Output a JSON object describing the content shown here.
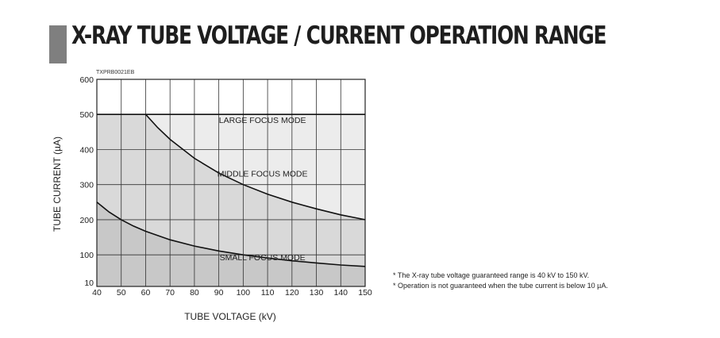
{
  "page_title": "X-RAY TUBE VOLTAGE / CURRENT OPERATION RANGE",
  "figure_code": "TXPRB0021EB",
  "notes": [
    "* The X-ray tube voltage guaranteed range is 40 kV to 150 kV.",
    "* Operation is not guaranteed when the tube current is below 10 µA."
  ],
  "colors": {
    "small_region": "#c8c8c8",
    "middle_region": "#d9d9d9",
    "large_region": "#ececec",
    "title_bar": "#7f7f7f"
  },
  "chart_data": {
    "type": "area",
    "xlabel": "TUBE VOLTAGE (kV)",
    "ylabel": "TUBE CURRENT (µA)",
    "xlim": [
      40,
      150
    ],
    "ylim": [
      10,
      600
    ],
    "x_ticks": [
      40,
      50,
      60,
      70,
      80,
      90,
      100,
      110,
      120,
      130,
      140,
      150
    ],
    "y_ticks": [
      10,
      100,
      200,
      300,
      400,
      500,
      600
    ],
    "grid": true,
    "series": [
      {
        "name": "SMALL FOCUS MODE",
        "x": [
          40,
          45,
          50,
          55,
          60,
          70,
          80,
          90,
          100,
          110,
          120,
          130,
          140,
          150
        ],
        "values": [
          250,
          222,
          200,
          182,
          167,
          143,
          125,
          111,
          100,
          91,
          83,
          77,
          71,
          67
        ]
      },
      {
        "name": "MIDDLE FOCUS MODE",
        "x": [
          60,
          65,
          70,
          80,
          90,
          100,
          110,
          120,
          130,
          140,
          150
        ],
        "values": [
          500,
          462,
          429,
          375,
          333,
          300,
          273,
          250,
          231,
          214,
          200
        ]
      },
      {
        "name": "LARGE FOCUS MODE",
        "x": [
          40,
          150
        ],
        "values": [
          500,
          500
        ]
      }
    ]
  }
}
